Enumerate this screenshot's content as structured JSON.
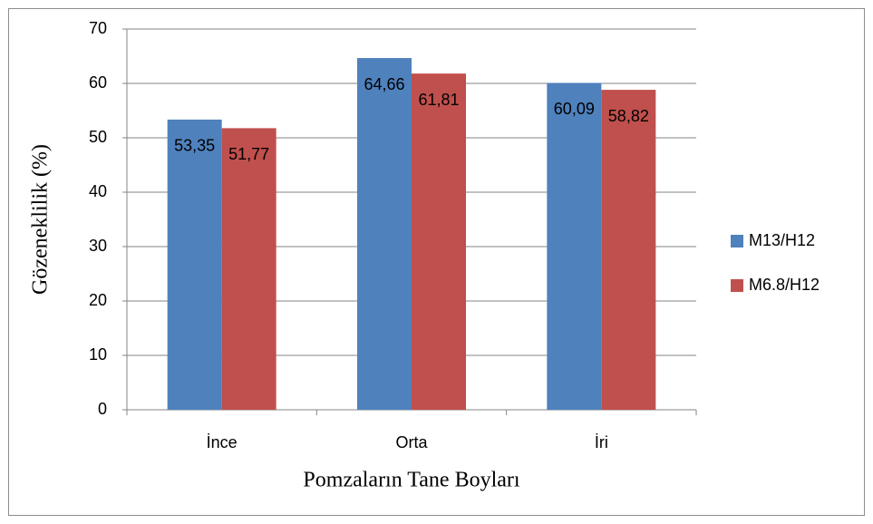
{
  "chart_data": {
    "type": "bar",
    "categories": [
      "İnce",
      "Orta",
      "İri"
    ],
    "series": [
      {
        "name": "M13/H12",
        "color": "#4f81bd",
        "values": [
          53.35,
          64.66,
          60.09
        ],
        "value_labels": [
          "53,35",
          "64,66",
          "60,09"
        ]
      },
      {
        "name": "M6.8/H12",
        "color": "#c0504d",
        "values": [
          51.77,
          61.81,
          58.82
        ],
        "value_labels": [
          "51,77",
          "61,81",
          "58,82"
        ]
      }
    ],
    "ylabel": "Gözeneklilik (%)",
    "xlabel": "Pomzaların Tane Boyları",
    "ylim": [
      0,
      70
    ],
    "yticks": [
      0,
      10,
      20,
      30,
      40,
      50,
      60,
      70
    ],
    "grid": true,
    "legend": "right"
  }
}
